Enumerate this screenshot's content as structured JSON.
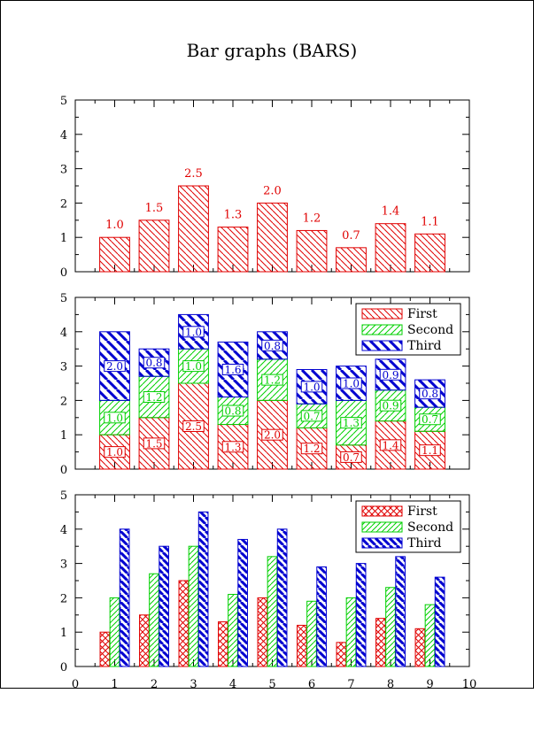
{
  "title": "Bar graphs (BARS)",
  "colors": {
    "first": "#e00000",
    "second": "#00d000",
    "third": "#0000d0",
    "axis": "#000000"
  },
  "chart_data": [
    {
      "type": "bar",
      "categories": [
        "1",
        "2",
        "3",
        "4",
        "5",
        "6",
        "7",
        "8",
        "9"
      ],
      "x": [
        1,
        2,
        3,
        4,
        5,
        6,
        7,
        8,
        9
      ],
      "values": [
        1.0,
        1.5,
        2.5,
        1.3,
        2.0,
        1.2,
        0.7,
        1.4,
        1.1
      ],
      "value_labels": [
        "1.0",
        "1.5",
        "2.5",
        "1.3",
        "2.0",
        "1.2",
        "0.7",
        "1.4",
        "1.1"
      ],
      "ylim": [
        0,
        5
      ],
      "xlim": [
        0,
        10
      ],
      "pattern": "hatch"
    },
    {
      "type": "bar",
      "stacked": true,
      "categories": [
        "1",
        "2",
        "3",
        "4",
        "5",
        "6",
        "7",
        "8",
        "9"
      ],
      "x": [
        1,
        2,
        3,
        4,
        5,
        6,
        7,
        8,
        9
      ],
      "series": [
        {
          "name": "First",
          "values": [
            1.0,
            1.5,
            2.5,
            1.3,
            2.0,
            1.2,
            0.7,
            1.4,
            1.1
          ],
          "labels": [
            "1.0",
            "1.5",
            "2.5",
            "1.3",
            "2.0",
            "1.2",
            "0.7",
            "1.4",
            "1.1"
          ]
        },
        {
          "name": "Second",
          "values": [
            1.0,
            1.2,
            1.0,
            0.8,
            1.2,
            0.7,
            1.3,
            0.9,
            0.7
          ],
          "labels": [
            "1.0",
            "1.2",
            "1.0",
            "0.8",
            "1.2",
            "0.7",
            "1.3",
            "0.9",
            "0.7"
          ]
        },
        {
          "name": "Third",
          "values": [
            2.0,
            0.8,
            1.0,
            1.6,
            0.8,
            1.0,
            1.0,
            0.9,
            0.8
          ],
          "labels": [
            "2.0",
            "0.8",
            "1.0",
            "1.6",
            "0.8",
            "1.0",
            "1.0",
            "0.9",
            "0.8"
          ]
        }
      ],
      "ylim": [
        0,
        5
      ],
      "xlim": [
        0,
        10
      ],
      "legend": "top-right"
    },
    {
      "type": "bar",
      "grouped": true,
      "categories": [
        "1",
        "2",
        "3",
        "4",
        "5",
        "6",
        "7",
        "8",
        "9"
      ],
      "x": [
        1,
        2,
        3,
        4,
        5,
        6,
        7,
        8,
        9
      ],
      "series": [
        {
          "name": "First",
          "values": [
            1.0,
            1.5,
            2.5,
            1.3,
            2.0,
            1.2,
            0.7,
            1.4,
            1.1
          ]
        },
        {
          "name": "Second",
          "values": [
            2.0,
            2.7,
            3.5,
            2.1,
            3.2,
            1.9,
            2.0,
            2.3,
            1.8
          ]
        },
        {
          "name": "Third",
          "values": [
            4.0,
            3.5,
            4.5,
            3.7,
            4.0,
            2.9,
            3.0,
            3.2,
            2.6
          ]
        }
      ],
      "ylim": [
        0,
        5
      ],
      "xlim": [
        0,
        10
      ],
      "xticks": [
        "0",
        "1",
        "2",
        "3",
        "4",
        "5",
        "6",
        "7",
        "8",
        "9",
        "10"
      ],
      "yticks": [
        "0",
        "1",
        "2",
        "3",
        "4",
        "5"
      ],
      "legend": "top-right"
    }
  ]
}
